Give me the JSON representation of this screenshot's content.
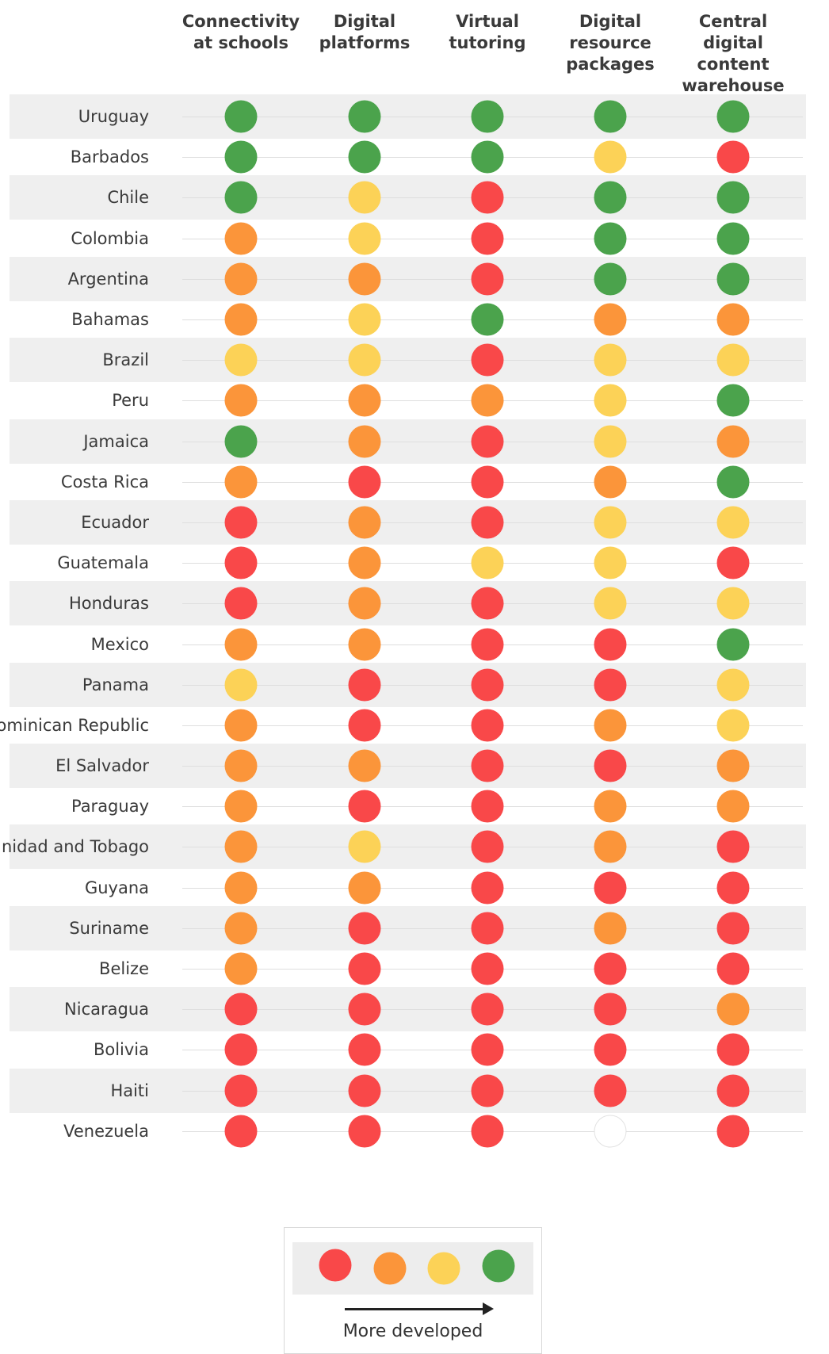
{
  "chart_data": {
    "type": "table",
    "columns": [
      "Connectivity\nat schools",
      "Digital\nplatforms",
      "Virtual\ntutoring",
      "Digital\nresource\npackages",
      "Central digital\ncontent\nwarehouse"
    ],
    "levels": [
      "lowest",
      "low",
      "medium",
      "high"
    ],
    "level_colors": {
      "lowest": "#f94849",
      "low": "#fb953a",
      "medium": "#fcd257",
      "high": "#4ba34c",
      "none": "#ffffff"
    },
    "rows": [
      {
        "country": "Uruguay",
        "values": [
          "high",
          "high",
          "high",
          "high",
          "high"
        ]
      },
      {
        "country": "Barbados",
        "values": [
          "high",
          "high",
          "high",
          "medium",
          "lowest"
        ]
      },
      {
        "country": "Chile",
        "values": [
          "high",
          "medium",
          "lowest",
          "high",
          "high"
        ]
      },
      {
        "country": "Colombia",
        "values": [
          "low",
          "medium",
          "lowest",
          "high",
          "high"
        ]
      },
      {
        "country": "Argentina",
        "values": [
          "low",
          "low",
          "lowest",
          "high",
          "high"
        ]
      },
      {
        "country": "Bahamas",
        "values": [
          "low",
          "medium",
          "high",
          "low",
          "low"
        ]
      },
      {
        "country": "Brazil",
        "values": [
          "medium",
          "medium",
          "lowest",
          "medium",
          "medium"
        ]
      },
      {
        "country": "Peru",
        "values": [
          "low",
          "low",
          "low",
          "medium",
          "high"
        ]
      },
      {
        "country": "Jamaica",
        "values": [
          "high",
          "low",
          "lowest",
          "medium",
          "low"
        ]
      },
      {
        "country": "Costa Rica",
        "values": [
          "low",
          "lowest",
          "lowest",
          "low",
          "high"
        ]
      },
      {
        "country": "Ecuador",
        "values": [
          "lowest",
          "low",
          "lowest",
          "medium",
          "medium"
        ]
      },
      {
        "country": "Guatemala",
        "values": [
          "lowest",
          "low",
          "medium",
          "medium",
          "lowest"
        ]
      },
      {
        "country": "Honduras",
        "values": [
          "lowest",
          "low",
          "lowest",
          "medium",
          "medium"
        ]
      },
      {
        "country": "Mexico",
        "values": [
          "low",
          "low",
          "lowest",
          "lowest",
          "high"
        ]
      },
      {
        "country": "Panama",
        "values": [
          "medium",
          "lowest",
          "lowest",
          "lowest",
          "medium"
        ]
      },
      {
        "country": "Dominican Republic",
        "values": [
          "low",
          "lowest",
          "lowest",
          "low",
          "medium"
        ]
      },
      {
        "country": "El Salvador",
        "values": [
          "low",
          "low",
          "lowest",
          "lowest",
          "low"
        ]
      },
      {
        "country": "Paraguay",
        "values": [
          "low",
          "lowest",
          "lowest",
          "low",
          "low"
        ]
      },
      {
        "country": "Trinidad and Tobago",
        "values": [
          "low",
          "medium",
          "lowest",
          "low",
          "lowest"
        ]
      },
      {
        "country": "Guyana",
        "values": [
          "low",
          "low",
          "lowest",
          "lowest",
          "lowest"
        ]
      },
      {
        "country": "Suriname",
        "values": [
          "low",
          "lowest",
          "lowest",
          "low",
          "lowest"
        ]
      },
      {
        "country": "Belize",
        "values": [
          "low",
          "lowest",
          "lowest",
          "lowest",
          "lowest"
        ]
      },
      {
        "country": "Nicaragua",
        "values": [
          "lowest",
          "lowest",
          "lowest",
          "lowest",
          "low"
        ]
      },
      {
        "country": "Bolivia",
        "values": [
          "lowest",
          "lowest",
          "lowest",
          "lowest",
          "lowest"
        ]
      },
      {
        "country": "Haiti",
        "values": [
          "lowest",
          "lowest",
          "lowest",
          "lowest",
          "lowest"
        ]
      },
      {
        "country": "Venezuela",
        "values": [
          "lowest",
          "lowest",
          "lowest",
          "none",
          "lowest"
        ]
      }
    ],
    "legend": {
      "items": [
        "lowest",
        "low",
        "medium",
        "high"
      ],
      "arrow_label": "More developed"
    }
  }
}
